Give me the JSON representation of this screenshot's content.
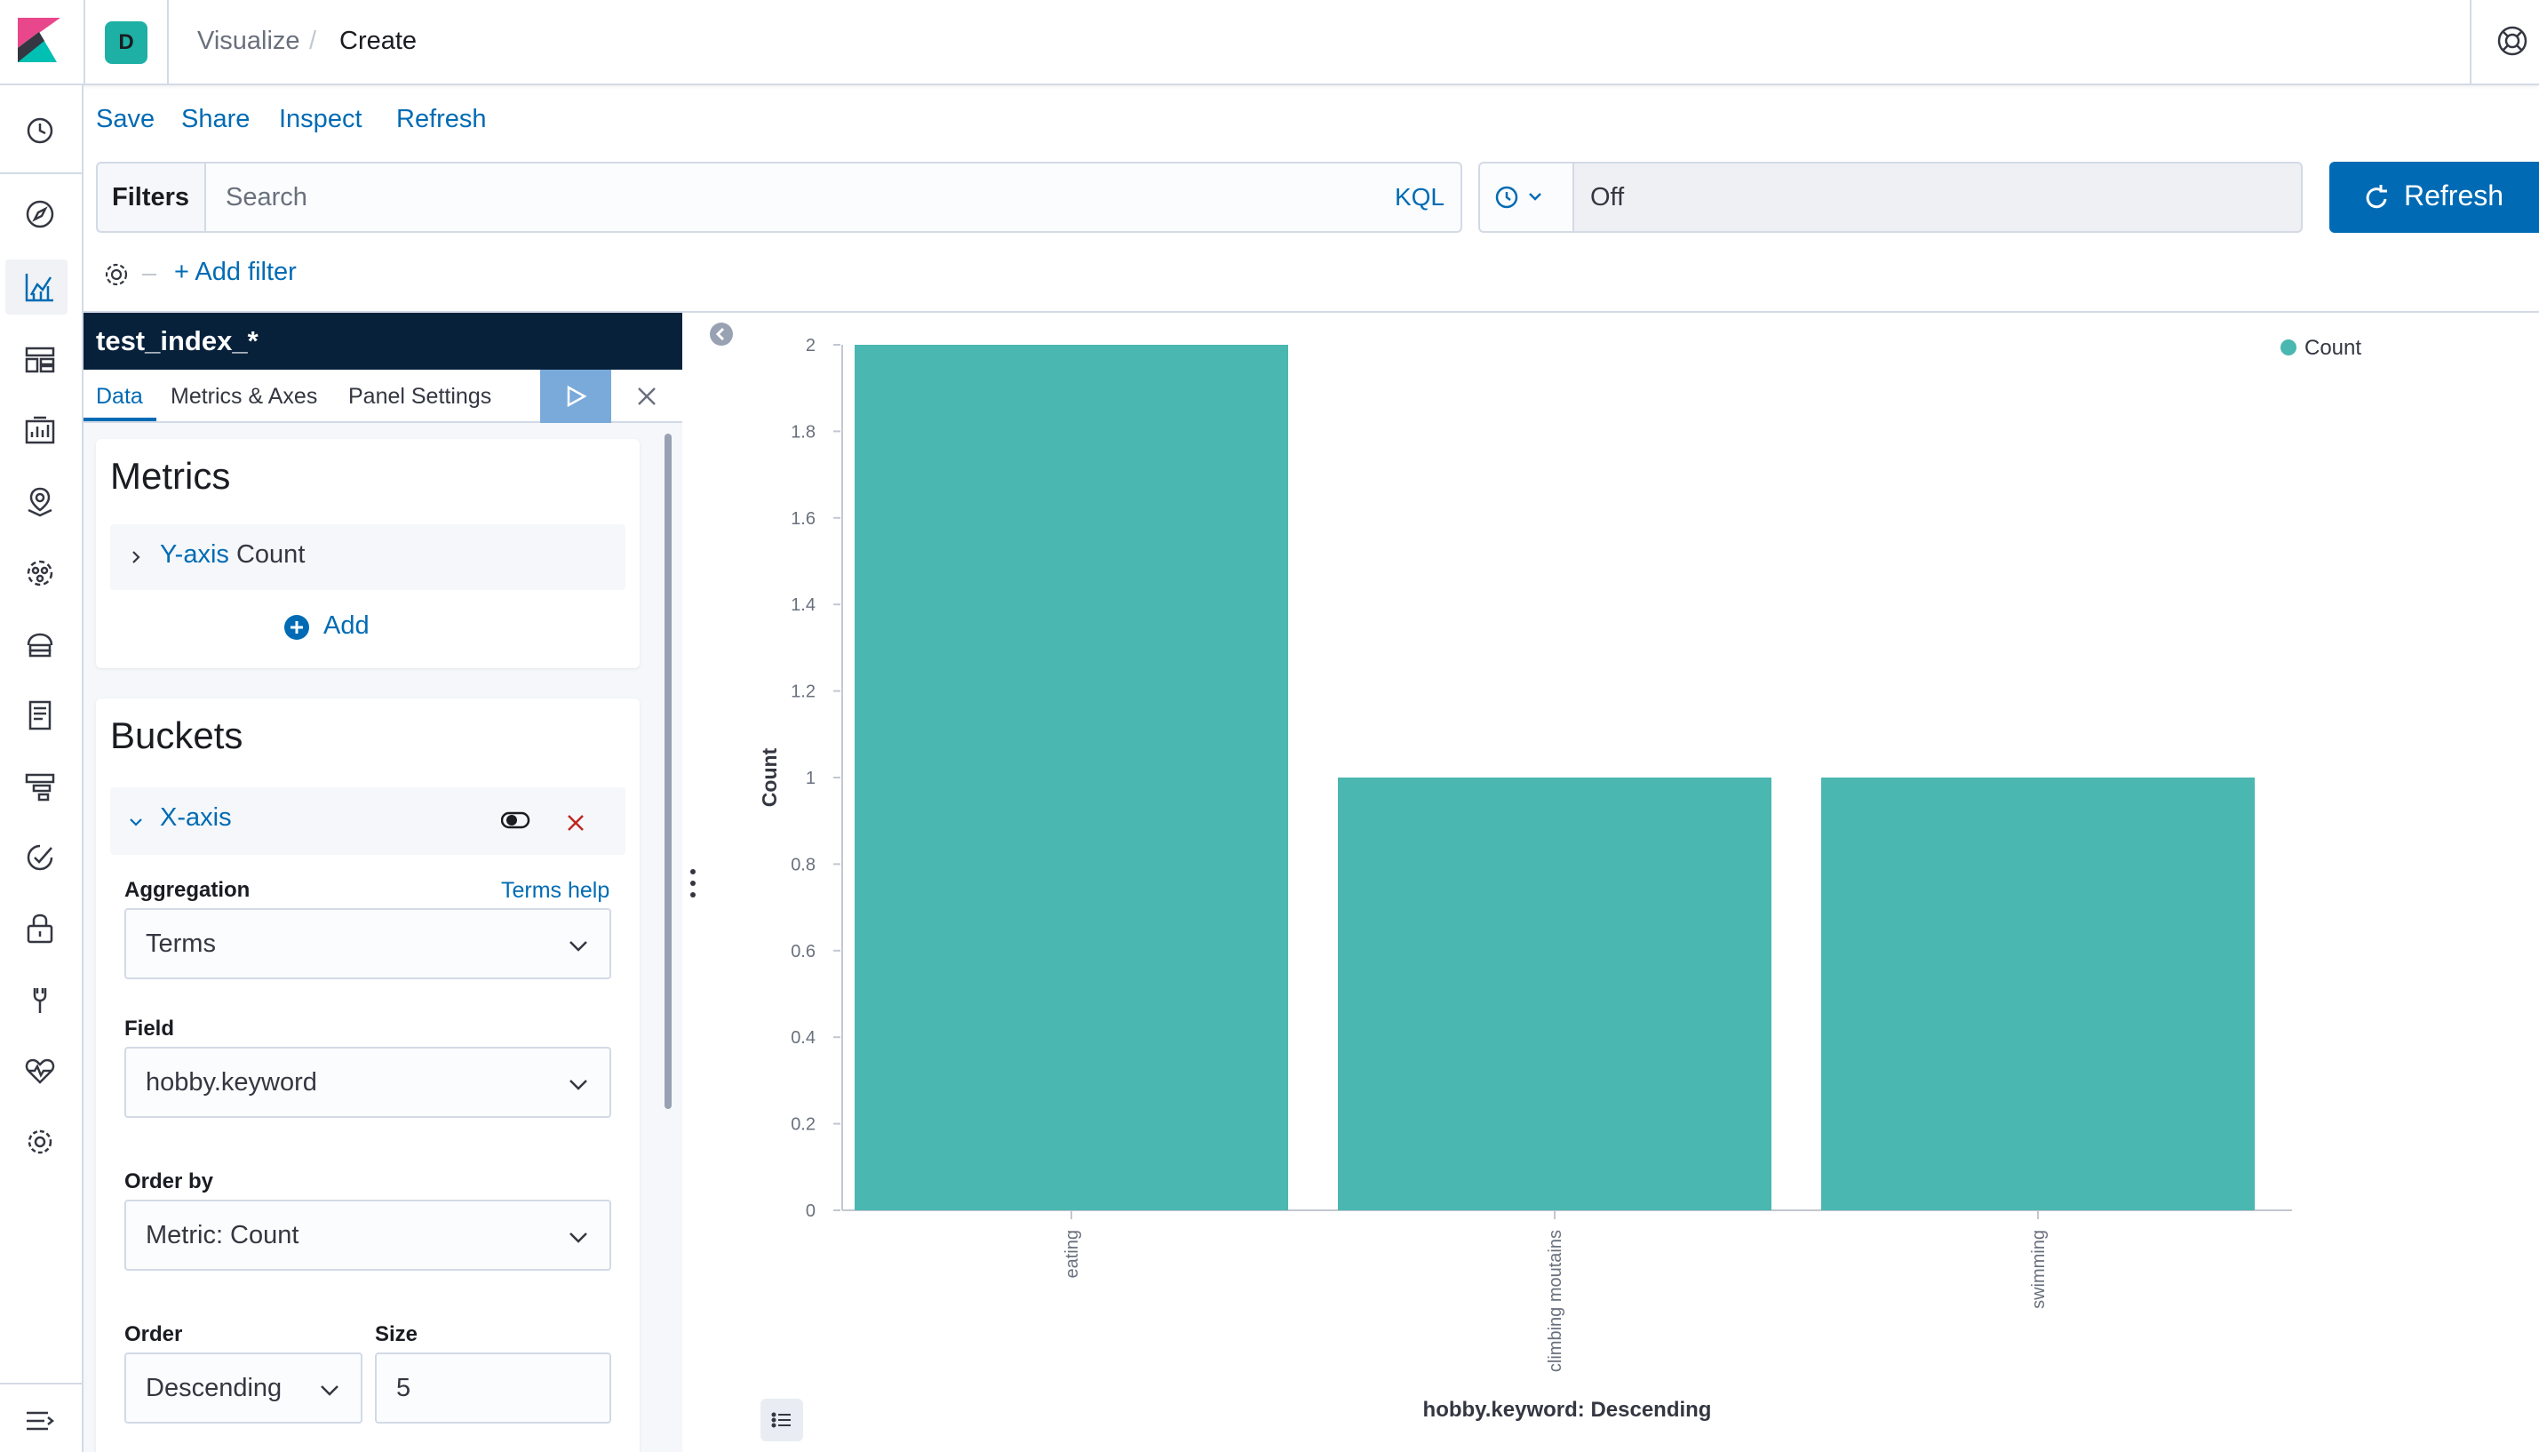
{
  "header": {
    "space_initial": "D",
    "breadcrumbs": [
      "Visualize",
      "Create"
    ],
    "separator": "/"
  },
  "nav": {
    "items": [
      "recently-viewed-icon",
      "discover-icon",
      "visualize-icon",
      "dashboard-icon",
      "canvas-icon",
      "maps-icon",
      "machine-learning-icon",
      "infrastructure-icon",
      "logs-icon",
      "apm-icon",
      "uptime-icon",
      "siem-icon",
      "dev-tools-icon",
      "monitoring-icon",
      "management-icon",
      "collapse-nav-icon"
    ],
    "active": "visualize-icon"
  },
  "menu": {
    "save": "Save",
    "share": "Share",
    "inspect": "Inspect",
    "refresh": "Refresh"
  },
  "query_bar": {
    "filters_label": "Filters",
    "search_placeholder": "Search",
    "language": "KQL",
    "time_value": "Off",
    "refresh_button": "Refresh",
    "add_filter": "+ Add filter"
  },
  "editor": {
    "index_pattern": "test_index_*",
    "tabs": [
      "Data",
      "Metrics & Axes",
      "Panel Settings"
    ],
    "active_tab": "Data",
    "metrics": {
      "title": "Metrics",
      "y_axis_label": "Y-axis",
      "y_axis_value": "Count",
      "add_label": "Add"
    },
    "buckets": {
      "title": "Buckets",
      "x_axis_label": "X-axis",
      "aggregation_label": "Aggregation",
      "aggregation_help": "Terms help",
      "aggregation_value": "Terms",
      "field_label": "Field",
      "field_value": "hobby.keyword",
      "order_by_label": "Order by",
      "order_by_value": "Metric: Count",
      "order_label": "Order",
      "order_value": "Descending",
      "size_label": "Size",
      "size_value": "5"
    }
  },
  "chart_data": {
    "type": "bar",
    "categories": [
      "eating",
      "climbing moutains",
      "swimming"
    ],
    "series": [
      {
        "name": "Count",
        "values": [
          2,
          1,
          1
        ]
      }
    ],
    "ylabel": "Count",
    "xlabel": "hobby.keyword: Descending",
    "ylim": [
      0,
      2
    ],
    "yticks": [
      "0",
      "0.2",
      "0.4",
      "0.6",
      "0.8",
      "1",
      "1.2",
      "1.4",
      "1.6",
      "1.8",
      "2"
    ],
    "legend_position": "top-right",
    "bar_color": "#4ab7b0",
    "grid": false
  }
}
